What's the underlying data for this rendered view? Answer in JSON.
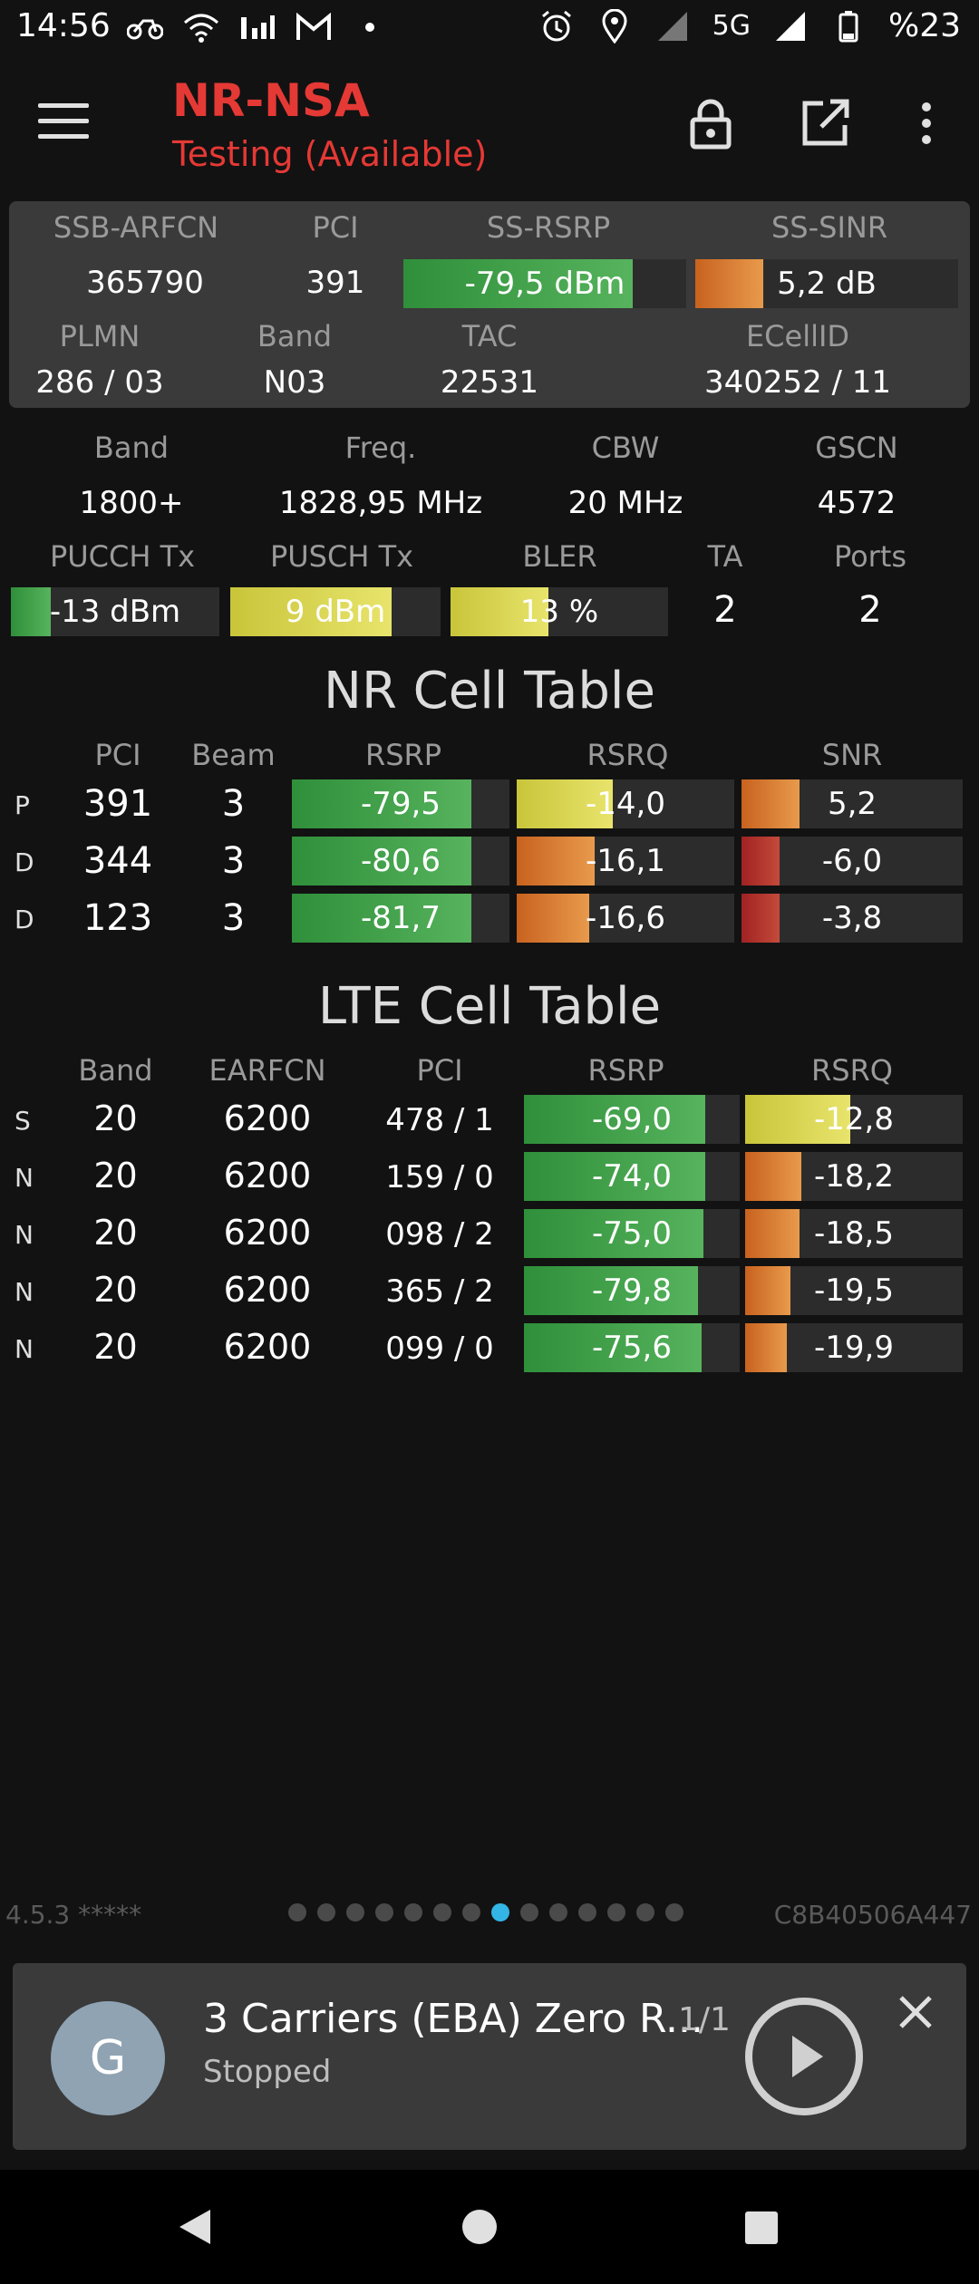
{
  "status_bar": {
    "time": "14:56",
    "left_icons": [
      "bike-icon",
      "wifi-icon",
      "signal-r-icon",
      "gmail-icon",
      "dot-icon"
    ],
    "right_icons": [
      "alarm-icon",
      "location-icon",
      "signal-icon",
      "5g-icon",
      "signal-5g-icon"
    ],
    "network": "5G",
    "battery": "%23"
  },
  "toolbar": {
    "title": "NR-NSA",
    "subtitle": "Testing (Available)"
  },
  "nr_panel": {
    "headers": [
      "SSB-ARFCN",
      "PCI",
      "SS-RSRP",
      "SS-SINR"
    ],
    "ssb_arfcn": "365790",
    "pci": "391",
    "ss_rsrp": "-79,5 dBm",
    "ss_sinr": "5,2 dB",
    "headers2": [
      "PLMN",
      "Band",
      "TAC",
      "ECellID"
    ],
    "plmn": "286 / 03",
    "band": "N03",
    "tac": "22531",
    "ecellid": "340252 / 11"
  },
  "lte_info": {
    "headers": [
      "Band",
      "Freq.",
      "CBW",
      "GSCN"
    ],
    "band": "1800+",
    "freq": "1828,95 MHz",
    "cbw": "20 MHz",
    "gscn": "4572",
    "headers2": [
      "PUCCH Tx",
      "PUSCH Tx",
      "BLER",
      "TA",
      "Ports"
    ],
    "pucch_tx": "-13 dBm",
    "pusch_tx": "9 dBm",
    "bler": "13 %",
    "ta": "2",
    "ports": "2"
  },
  "nr_table": {
    "title": "NR Cell Table",
    "headers": [
      "PCI",
      "Beam",
      "RSRP",
      "RSRQ",
      "SNR"
    ],
    "rows": [
      {
        "type": "P",
        "pci": "391",
        "beam": "3",
        "rsrp": "-79,5",
        "rsrq": "-14,0",
        "snr": "5,2"
      },
      {
        "type": "D",
        "pci": "344",
        "beam": "3",
        "rsrp": "-80,6",
        "rsrq": "-16,1",
        "snr": "-6,0"
      },
      {
        "type": "D",
        "pci": "123",
        "beam": "3",
        "rsrp": "-81,7",
        "rsrq": "-16,6",
        "snr": "-3,8"
      }
    ]
  },
  "lte_table": {
    "title": "LTE Cell Table",
    "headers": [
      "Band",
      "EARFCN",
      "PCI",
      "RSRP",
      "RSRQ"
    ],
    "rows": [
      {
        "type": "S",
        "band": "20",
        "earfcn": "6200",
        "pci": "478 / 1",
        "rsrp": "-69,0",
        "rsrq": "-12,8"
      },
      {
        "type": "N",
        "band": "20",
        "earfcn": "6200",
        "pci": "159 / 0",
        "rsrp": "-74,0",
        "rsrq": "-18,2"
      },
      {
        "type": "N",
        "band": "20",
        "earfcn": "6200",
        "pci": "098 / 2",
        "rsrp": "-75,0",
        "rsrq": "-18,5"
      },
      {
        "type": "N",
        "band": "20",
        "earfcn": "6200",
        "pci": "365 / 2",
        "rsrp": "-79,8",
        "rsrq": "-19,5"
      },
      {
        "type": "N",
        "band": "20",
        "earfcn": "6200",
        "pci": "099 / 0",
        "rsrp": "-75,6",
        "rsrq": "-19,9"
      }
    ]
  },
  "footer": {
    "version": "4.5.3 *****",
    "device_id": "C8B40506A447",
    "page_dots": 14,
    "active_dot": 7
  },
  "player": {
    "avatar": "G",
    "title": "3 Carriers (EBA) Zero R...",
    "count": "1/1",
    "status": "Stopped"
  },
  "colors": {
    "accent_red": "#e53935",
    "good_green": "#3fa14a",
    "warn_orange": "#d9782f",
    "mid_yellow": "#d9d54e",
    "bad_red": "#b03030",
    "active_dot": "#33b5e5"
  }
}
